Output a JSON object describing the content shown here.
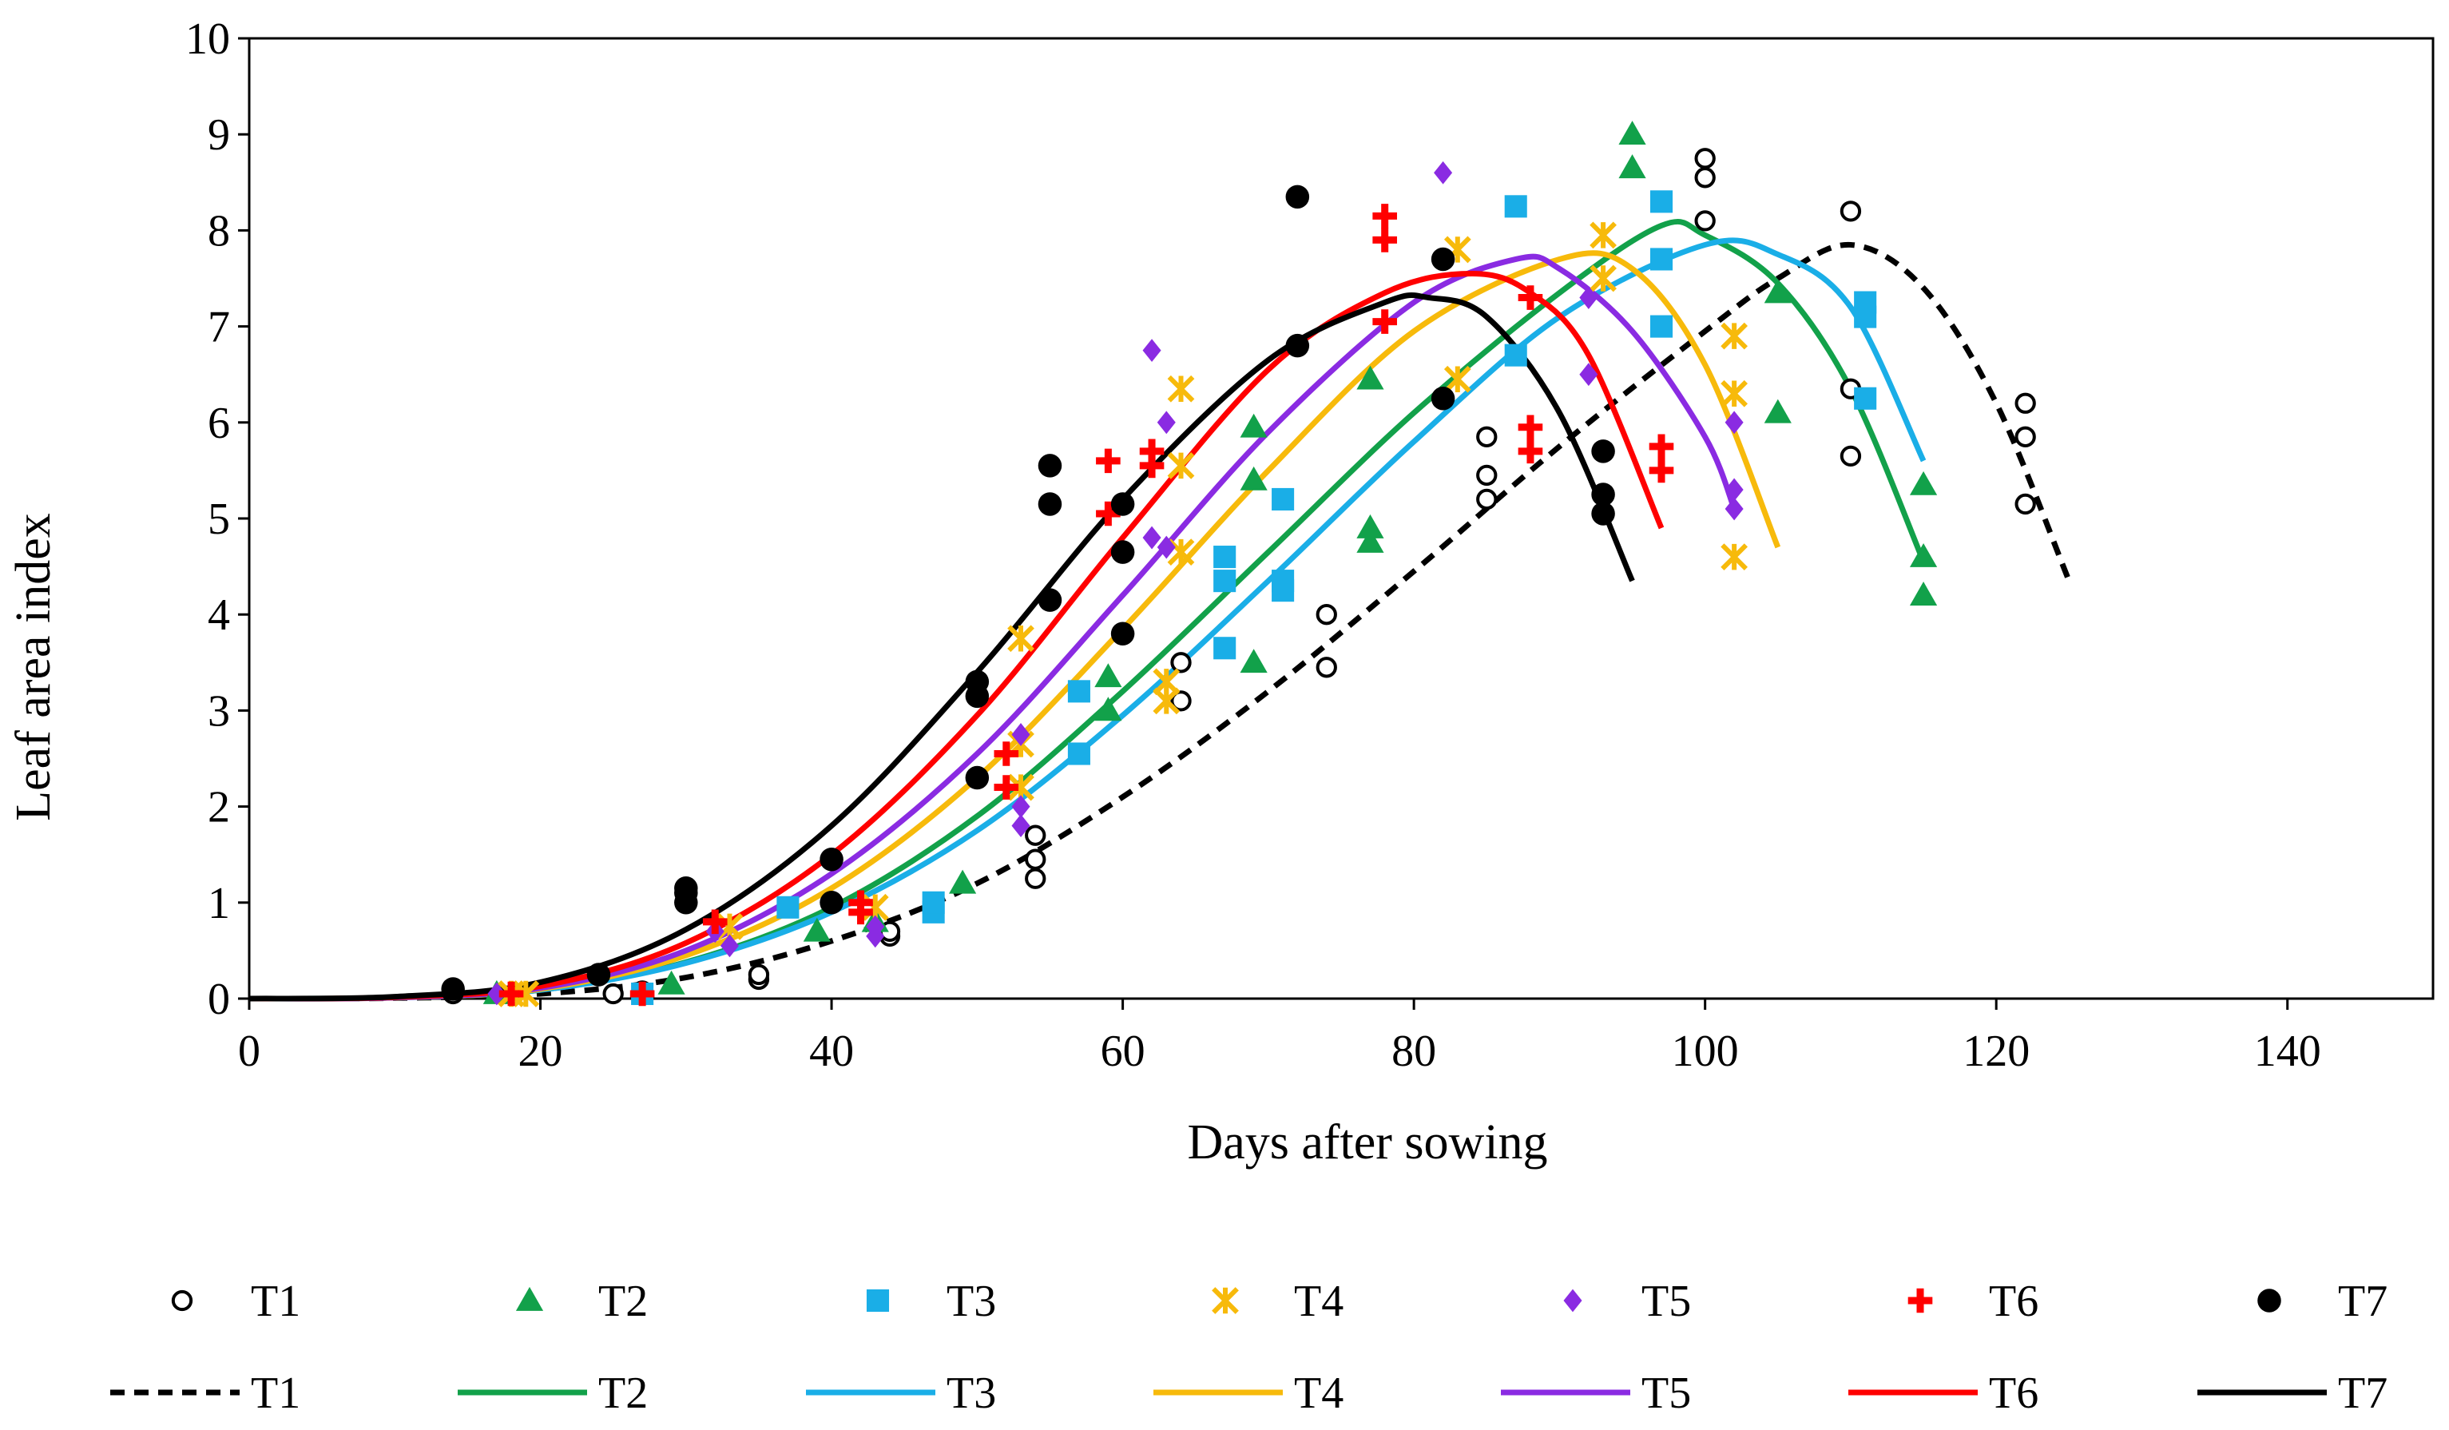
{
  "chart_data": {
    "type": "scatter",
    "title": "",
    "xlabel": "Days after sowing",
    "ylabel": "Leaf area index",
    "xlim": [
      0,
      150
    ],
    "ylim": [
      0,
      10
    ],
    "xticks": [
      0,
      20,
      40,
      60,
      80,
      100,
      120,
      140
    ],
    "yticks": [
      0,
      1,
      2,
      3,
      4,
      5,
      6,
      7,
      8,
      9,
      10
    ],
    "grid": false,
    "legend_position": "bottom",
    "series": [
      {
        "name": "T1",
        "color": "#000000",
        "marker": "open-circle",
        "line_style": "dashed",
        "points": [
          [
            14,
            0.05
          ],
          [
            25,
            0.05
          ],
          [
            27,
            0.08
          ],
          [
            35,
            0.2
          ],
          [
            35,
            0.25
          ],
          [
            44,
            0.65
          ],
          [
            44,
            0.7
          ],
          [
            54,
            1.25
          ],
          [
            54,
            1.45
          ],
          [
            54,
            1.7
          ],
          [
            64,
            3.1
          ],
          [
            64,
            3.5
          ],
          [
            74,
            3.45
          ],
          [
            74,
            4.0
          ],
          [
            85,
            5.2
          ],
          [
            85,
            5.45
          ],
          [
            85,
            5.85
          ],
          [
            100,
            8.1
          ],
          [
            100,
            8.55
          ],
          [
            100,
            8.75
          ],
          [
            110,
            5.65
          ],
          [
            110,
            6.35
          ],
          [
            110,
            8.2
          ],
          [
            122,
            5.15
          ],
          [
            122,
            5.85
          ],
          [
            122,
            6.2
          ]
        ],
        "fit": [
          [
            0,
            0.0
          ],
          [
            10,
            0.005
          ],
          [
            20,
            0.05
          ],
          [
            30,
            0.22
          ],
          [
            40,
            0.6
          ],
          [
            50,
            1.2
          ],
          [
            60,
            2.1
          ],
          [
            70,
            3.2
          ],
          [
            80,
            4.45
          ],
          [
            90,
            5.75
          ],
          [
            100,
            6.95
          ],
          [
            105,
            7.5
          ],
          [
            110,
            7.85
          ],
          [
            115,
            7.4
          ],
          [
            120,
            6.2
          ],
          [
            125,
            4.35
          ]
        ]
      },
      {
        "name": "T2",
        "color": "#12a14a",
        "marker": "triangle",
        "line_style": "solid",
        "points": [
          [
            17,
            0.05
          ],
          [
            29,
            0.15
          ],
          [
            39,
            0.7
          ],
          [
            43,
            0.8
          ],
          [
            49,
            1.2
          ],
          [
            59,
            3.0
          ],
          [
            59,
            3.35
          ],
          [
            69,
            3.5
          ],
          [
            69,
            5.4
          ],
          [
            69,
            5.95
          ],
          [
            77,
            4.75
          ],
          [
            77,
            4.9
          ],
          [
            77,
            6.45
          ],
          [
            95,
            8.65
          ],
          [
            95,
            9.0
          ],
          [
            105,
            6.1
          ],
          [
            105,
            7.35
          ],
          [
            115,
            4.2
          ],
          [
            115,
            4.6
          ],
          [
            115,
            5.35
          ]
        ],
        "fit": [
          [
            0,
            0.0
          ],
          [
            10,
            0.01
          ],
          [
            20,
            0.09
          ],
          [
            30,
            0.38
          ],
          [
            40,
            0.95
          ],
          [
            50,
            1.9
          ],
          [
            60,
            3.2
          ],
          [
            70,
            4.65
          ],
          [
            80,
            6.1
          ],
          [
            90,
            7.35
          ],
          [
            97,
            8.05
          ],
          [
            100,
            7.95
          ],
          [
            105,
            7.45
          ],
          [
            110,
            6.35
          ],
          [
            115,
            4.55
          ]
        ]
      },
      {
        "name": "T3",
        "color": "#1aaee7",
        "marker": "square",
        "line_style": "solid",
        "points": [
          [
            27,
            0.05
          ],
          [
            37,
            0.95
          ],
          [
            47,
            0.9
          ],
          [
            47,
            1.0
          ],
          [
            57,
            2.55
          ],
          [
            57,
            3.2
          ],
          [
            67,
            3.65
          ],
          [
            67,
            4.35
          ],
          [
            67,
            4.6
          ],
          [
            71,
            4.25
          ],
          [
            71,
            4.35
          ],
          [
            71,
            5.2
          ],
          [
            87,
            6.7
          ],
          [
            87,
            8.25
          ],
          [
            97,
            7.0
          ],
          [
            97,
            7.7
          ],
          [
            97,
            8.3
          ],
          [
            111,
            6.25
          ],
          [
            111,
            7.1
          ],
          [
            111,
            7.25
          ]
        ],
        "fit": [
          [
            0,
            0.0
          ],
          [
            10,
            0.01
          ],
          [
            20,
            0.09
          ],
          [
            30,
            0.37
          ],
          [
            40,
            0.9
          ],
          [
            50,
            1.75
          ],
          [
            60,
            2.95
          ],
          [
            70,
            4.35
          ],
          [
            80,
            5.8
          ],
          [
            90,
            7.1
          ],
          [
            100,
            7.85
          ],
          [
            105,
            7.75
          ],
          [
            110,
            7.2
          ],
          [
            115,
            5.6
          ]
        ]
      },
      {
        "name": "T4",
        "color": "#f7ba0b",
        "marker": "x",
        "line_style": "solid",
        "points": [
          [
            18,
            0.05
          ],
          [
            19,
            0.05
          ],
          [
            33,
            0.75
          ],
          [
            43,
            0.95
          ],
          [
            53,
            2.2
          ],
          [
            53,
            2.65
          ],
          [
            53,
            3.75
          ],
          [
            63,
            3.1
          ],
          [
            63,
            3.3
          ],
          [
            64,
            4.65
          ],
          [
            64,
            5.55
          ],
          [
            64,
            6.35
          ],
          [
            83,
            6.45
          ],
          [
            83,
            7.8
          ],
          [
            93,
            7.5
          ],
          [
            93,
            7.95
          ],
          [
            102,
            4.6
          ],
          [
            102,
            6.3
          ],
          [
            102,
            6.9
          ]
        ],
        "fit": [
          [
            0,
            0.0
          ],
          [
            10,
            0.01
          ],
          [
            20,
            0.1
          ],
          [
            30,
            0.45
          ],
          [
            40,
            1.15
          ],
          [
            50,
            2.3
          ],
          [
            60,
            3.85
          ],
          [
            70,
            5.5
          ],
          [
            80,
            6.95
          ],
          [
            90,
            7.7
          ],
          [
            95,
            7.6
          ],
          [
            100,
            6.6
          ],
          [
            105,
            4.7
          ]
        ]
      },
      {
        "name": "T5",
        "color": "#8a2be2",
        "marker": "diamond",
        "line_style": "solid",
        "points": [
          [
            17,
            0.05
          ],
          [
            32,
            0.7
          ],
          [
            33,
            0.55
          ],
          [
            43,
            0.65
          ],
          [
            43,
            0.75
          ],
          [
            53,
            1.8
          ],
          [
            53,
            2.0
          ],
          [
            53,
            2.75
          ],
          [
            62,
            4.8
          ],
          [
            62,
            6.75
          ],
          [
            63,
            4.7
          ],
          [
            63,
            6.0
          ],
          [
            82,
            8.6
          ],
          [
            92,
            6.5
          ],
          [
            92,
            7.3
          ],
          [
            102,
            5.1
          ],
          [
            102,
            5.3
          ],
          [
            102,
            6.0
          ]
        ],
        "fit": [
          [
            0,
            0.0
          ],
          [
            10,
            0.01
          ],
          [
            20,
            0.11
          ],
          [
            30,
            0.5
          ],
          [
            40,
            1.3
          ],
          [
            50,
            2.55
          ],
          [
            60,
            4.2
          ],
          [
            70,
            5.9
          ],
          [
            80,
            7.25
          ],
          [
            87,
            7.7
          ],
          [
            90,
            7.6
          ],
          [
            95,
            6.95
          ],
          [
            100,
            5.85
          ],
          [
            102,
            5.1
          ]
        ]
      },
      {
        "name": "T6",
        "color": "#ff0000",
        "marker": "cross",
        "line_style": "solid",
        "points": [
          [
            18,
            0.05
          ],
          [
            27,
            0.05
          ],
          [
            32,
            0.8
          ],
          [
            42,
            0.9
          ],
          [
            42,
            1.0
          ],
          [
            52,
            2.2
          ],
          [
            52,
            2.55
          ],
          [
            59,
            5.05
          ],
          [
            59,
            5.6
          ],
          [
            62,
            5.55
          ],
          [
            62,
            5.7
          ],
          [
            78,
            7.05
          ],
          [
            78,
            7.9
          ],
          [
            78,
            8.15
          ],
          [
            88,
            5.7
          ],
          [
            88,
            5.95
          ],
          [
            88,
            7.3
          ],
          [
            97,
            5.5
          ],
          [
            97,
            5.75
          ]
        ],
        "fit": [
          [
            0,
            0.0
          ],
          [
            10,
            0.015
          ],
          [
            20,
            0.13
          ],
          [
            30,
            0.58
          ],
          [
            40,
            1.5
          ],
          [
            50,
            2.95
          ],
          [
            60,
            4.8
          ],
          [
            70,
            6.55
          ],
          [
            78,
            7.35
          ],
          [
            84,
            7.55
          ],
          [
            88,
            7.35
          ],
          [
            92,
            6.7
          ],
          [
            97,
            4.9
          ]
        ]
      },
      {
        "name": "T7",
        "color": "#000000",
        "marker": "filled-circle",
        "line_style": "solid",
        "points": [
          [
            14,
            0.1
          ],
          [
            24,
            0.25
          ],
          [
            30,
            1.0
          ],
          [
            30,
            1.1
          ],
          [
            30,
            1.15
          ],
          [
            40,
            1.0
          ],
          [
            40,
            1.45
          ],
          [
            50,
            2.3
          ],
          [
            50,
            3.15
          ],
          [
            50,
            3.3
          ],
          [
            55,
            4.15
          ],
          [
            55,
            5.15
          ],
          [
            55,
            5.55
          ],
          [
            60,
            3.8
          ],
          [
            60,
            4.65
          ],
          [
            60,
            5.15
          ],
          [
            72,
            6.8
          ],
          [
            72,
            8.35
          ],
          [
            82,
            6.25
          ],
          [
            82,
            7.7
          ],
          [
            93,
            5.05
          ],
          [
            93,
            5.25
          ],
          [
            93,
            5.7
          ]
        ],
        "fit": [
          [
            0,
            0.0
          ],
          [
            10,
            0.02
          ],
          [
            20,
            0.17
          ],
          [
            30,
            0.72
          ],
          [
            40,
            1.8
          ],
          [
            50,
            3.4
          ],
          [
            60,
            5.2
          ],
          [
            70,
            6.65
          ],
          [
            78,
            7.25
          ],
          [
            81,
            7.3
          ],
          [
            85,
            7.1
          ],
          [
            90,
            6.1
          ],
          [
            95,
            4.35
          ]
        ]
      }
    ],
    "legend": {
      "markers": [
        "T1",
        "T2",
        "T3",
        "T4",
        "T5",
        "T6",
        "T7"
      ],
      "lines": [
        "T1",
        "T2",
        "T3",
        "T4",
        "T5",
        "T6",
        "T7"
      ]
    }
  }
}
